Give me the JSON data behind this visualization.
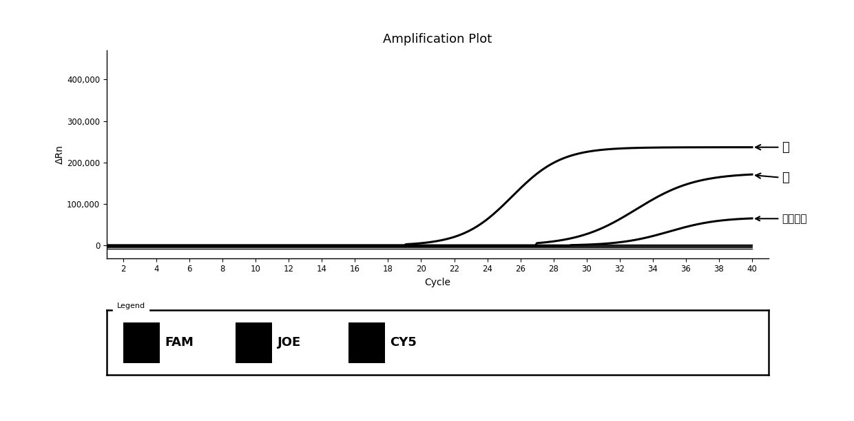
{
  "title": "Amplification Plot",
  "xlabel": "Cycle",
  "ylabel": "ΔRn",
  "xlim": [
    1,
    41
  ],
  "ylim": [
    -30000,
    470000
  ],
  "xticks": [
    2,
    4,
    6,
    8,
    10,
    12,
    14,
    16,
    18,
    20,
    22,
    24,
    26,
    28,
    30,
    32,
    34,
    36,
    38,
    40
  ],
  "yticks": [
    0,
    100000,
    200000,
    300000,
    400000
  ],
  "ytick_labels": [
    "0",
    "100,000",
    "200,000",
    "300,000",
    "400,000"
  ],
  "background_color": "#ffffff",
  "line_color": "#000000",
  "annotations": [
    {
      "text": "牛",
      "xy_x": 40.0,
      "xy_y": 237000,
      "xt": 41.8,
      "yt": 237000,
      "fontsize": 13
    },
    {
      "text": "鹿",
      "xy_x": 40.0,
      "xy_y": 170000,
      "xt": 41.8,
      "yt": 163000,
      "fontsize": 13
    },
    {
      "text": "内标质控",
      "xy_x": 40.0,
      "xy_y": 65000,
      "xt": 41.8,
      "yt": 65000,
      "fontsize": 11
    }
  ],
  "legend_labels": [
    "FAM",
    "JOE",
    "CY5"
  ],
  "legend_colors": [
    "#000000",
    "#000000",
    "#000000"
  ]
}
